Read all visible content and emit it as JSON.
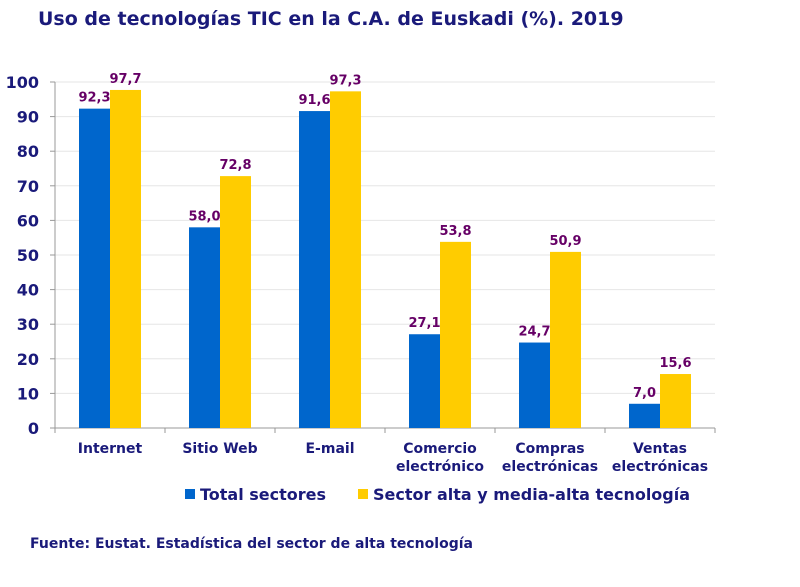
{
  "chart_data": {
    "type": "bar",
    "title": "Uso de tecnologías TIC en la C.A. de Euskadi (%). 2019",
    "categories": [
      [
        "Internet"
      ],
      [
        "Sitio Web"
      ],
      [
        "E-mail"
      ],
      [
        "Comercio",
        "electrónico"
      ],
      [
        "Compras",
        "electrónicas"
      ],
      [
        "Ventas",
        "electrónicas"
      ]
    ],
    "series": [
      {
        "name": "Total sectores",
        "color": "#0066cc",
        "values": [
          92.3,
          58.0,
          91.6,
          27.1,
          24.7,
          7.0
        ],
        "labels": [
          "92,3",
          "58,0",
          "91,6",
          "27,1",
          "24,7",
          "7,0"
        ]
      },
      {
        "name": "Sector alta y media-alta tecnología",
        "color": "#ffcc00",
        "values": [
          97.7,
          72.8,
          97.3,
          53.8,
          50.9,
          15.6
        ],
        "labels": [
          "97,7",
          "72,8",
          "97,3",
          "53,8",
          "50,9",
          "15,6"
        ]
      }
    ],
    "ylim": [
      0,
      100
    ],
    "yticks": [
      0,
      10,
      20,
      30,
      40,
      50,
      60,
      70,
      80,
      90,
      100
    ],
    "grid": true,
    "legend": "bottom",
    "xlabel": "",
    "ylabel": "",
    "label_color": "#660066",
    "axis_text_color": "#1a1a7a"
  },
  "source": "Fuente: Eustat. Estadística del sector de alta tecnología"
}
